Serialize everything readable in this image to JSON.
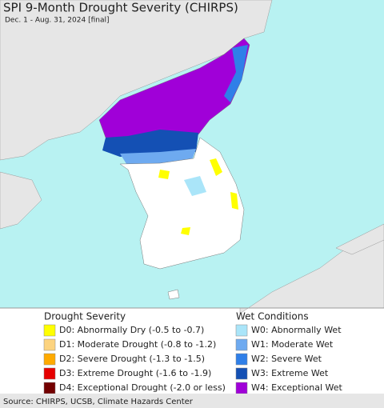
{
  "header": {
    "title": "SPI 9-Month Drought Severity (CHIRPS)",
    "subtitle": "Dec. 1 - Aug. 31, 2024 [final]"
  },
  "legend": [
    {
      "title": "Drought Severity",
      "items": [
        {
          "label": "D0: Abnormally Dry (-0.5 to -0.7)",
          "color": "#ffff00"
        },
        {
          "label": "D1: Moderate Drought (-0.8 to -1.2)",
          "color": "#fcd37f"
        },
        {
          "label": "D2: Severe Drought (-1.3 to -1.5)",
          "color": "#ffaa00"
        },
        {
          "label": "D3: Extreme Drought (-1.6 to -1.9)",
          "color": "#e60000"
        },
        {
          "label": "D4: Exceptional Drought (-2.0 or less)",
          "color": "#730000"
        }
      ]
    },
    {
      "title": "Wet Conditions",
      "items": [
        {
          "label": "W0: Abnormally Wet",
          "color": "#aae5f9"
        },
        {
          "label": "W1: Moderate Wet",
          "color": "#6eaaf0"
        },
        {
          "label": "W2: Severe Wet",
          "color": "#2f7fe8"
        },
        {
          "label": "W3: Extreme Wet",
          "color": "#1450b4"
        },
        {
          "label": "W4: Exceptional Wet",
          "color": "#a000d8"
        }
      ]
    }
  ],
  "source": "Source: CHIRPS, UCSB, Climate Hazards Center"
}
